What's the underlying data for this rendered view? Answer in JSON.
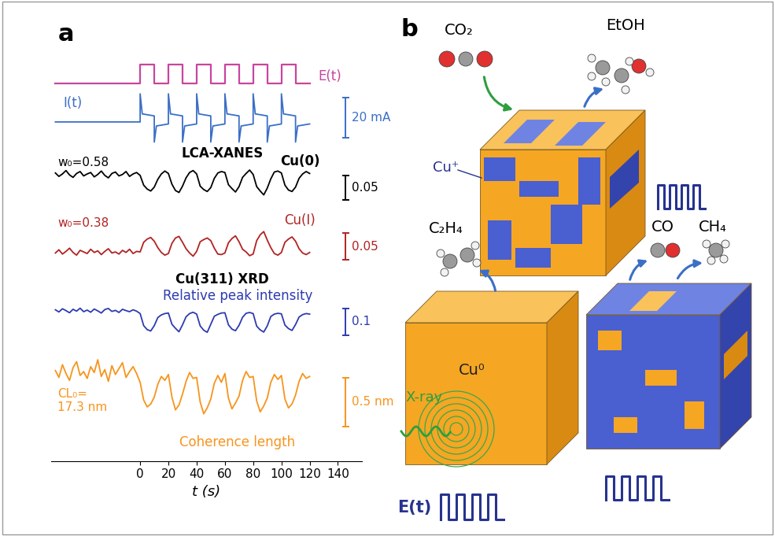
{
  "chart_data": {
    "type": "line",
    "panel_label": "a",
    "xlabel": "t (s)",
    "xlim": [
      -63,
      157
    ],
    "xticks": [
      0,
      20,
      40,
      60,
      80,
      100,
      120,
      140
    ],
    "tick_labels": "x",
    "x": [
      -60,
      -57.5,
      -55,
      -52.5,
      -50,
      -47.5,
      -45,
      -42.5,
      -40,
      -37.5,
      -35,
      -32.5,
      -30,
      -27.5,
      -25,
      -22.5,
      -20,
      -17.5,
      -15,
      -12.5,
      -10,
      -7.5,
      -5,
      -2.5,
      0,
      2.5,
      5,
      7.5,
      10,
      12.5,
      15,
      17.5,
      20,
      22.5,
      25,
      27.5,
      30,
      32.5,
      35,
      37.5,
      40,
      42.5,
      45,
      47.5,
      50,
      52.5,
      55,
      57.5,
      60,
      62.5,
      65,
      67.5,
      70,
      72.5,
      75,
      77.5,
      80,
      82.5,
      85,
      87.5,
      90,
      92.5,
      95,
      97.5,
      100,
      102.5,
      105,
      107.5,
      110,
      112.5,
      115,
      117.5,
      120
    ],
    "groups": [
      {
        "label": "LCA-XANES",
        "series": [
          "Cu(0)",
          "Cu(I)"
        ]
      },
      {
        "label": "Cu(311) XRD",
        "series": [
          "Relative peak intensity",
          "Coherence length"
        ]
      }
    ],
    "series": [
      {
        "name": "E(t)",
        "color": "#c8459e",
        "line_style": "steps",
        "ylim": [
          -0.4,
          1.3
        ],
        "x": [
          -60,
          0,
          10,
          20,
          30,
          40,
          50,
          60,
          70,
          80,
          90,
          100,
          110,
          120
        ],
        "values": [
          0,
          1,
          0,
          1,
          0,
          1,
          0,
          1,
          0,
          1,
          0,
          1,
          0,
          0
        ]
      },
      {
        "name": "I(t)",
        "color": "#3b6fc6",
        "ylim": [
          -14,
          18
        ],
        "scale": 20,
        "scale_label": "20 mA",
        "x": [
          -60,
          0,
          0,
          1.5,
          10,
          10,
          11.5,
          20,
          20,
          21.5,
          30,
          30,
          31.5,
          40,
          40,
          41.5,
          50,
          50,
          51.5,
          60,
          60,
          61.5,
          70,
          70,
          71.5,
          80,
          80,
          81.5,
          90,
          90,
          91.5,
          100,
          100,
          101.5,
          110,
          110,
          111.5,
          120
        ],
        "values": [
          0,
          0,
          14,
          4,
          3,
          -10,
          -2,
          -1,
          14,
          4,
          3,
          -10,
          -2,
          -1,
          14,
          4,
          3,
          -10,
          -2,
          -1,
          14,
          4,
          3,
          -10,
          -2,
          -1,
          14,
          4,
          3,
          -10,
          -2,
          -1,
          14,
          4,
          3,
          -10,
          -2,
          -1
        ]
      },
      {
        "name": "Cu(0)",
        "color": "#000000",
        "ylim": [
          0.5,
          0.61
        ],
        "scale": 0.05,
        "scale_label": "0.05",
        "annotation": "w₀=0.58",
        "values": [
          0.585,
          0.578,
          0.583,
          0.59,
          0.581,
          0.576,
          0.584,
          0.588,
          0.579,
          0.583,
          0.586,
          0.577,
          0.582,
          0.589,
          0.58,
          0.575,
          0.584,
          0.587,
          0.579,
          0.582,
          0.588,
          0.578,
          0.583,
          0.586,
          0.58,
          0.56,
          0.552,
          0.548,
          0.556,
          0.572,
          0.583,
          0.589,
          0.584,
          0.562,
          0.549,
          0.545,
          0.558,
          0.575,
          0.586,
          0.59,
          0.583,
          0.558,
          0.551,
          0.547,
          0.555,
          0.574,
          0.585,
          0.588,
          0.586,
          0.561,
          0.553,
          0.546,
          0.557,
          0.576,
          0.584,
          0.591,
          0.582,
          0.557,
          0.548,
          0.54,
          0.554,
          0.573,
          0.587,
          0.589,
          0.585,
          0.56,
          0.55,
          0.547,
          0.556,
          0.574,
          0.583,
          0.588,
          0.584
        ]
      },
      {
        "name": "Cu(I)",
        "color": "#b22222",
        "ylim": [
          0.34,
          0.44
        ],
        "scale": 0.05,
        "scale_label": "0.05",
        "annotation": "w₀=0.38",
        "values": [
          0.378,
          0.384,
          0.376,
          0.381,
          0.387,
          0.379,
          0.374,
          0.383,
          0.38,
          0.377,
          0.385,
          0.379,
          0.382,
          0.375,
          0.381,
          0.386,
          0.378,
          0.38,
          0.376,
          0.383,
          0.379,
          0.385,
          0.377,
          0.381,
          0.38,
          0.398,
          0.404,
          0.407,
          0.4,
          0.388,
          0.379,
          0.374,
          0.377,
          0.396,
          0.406,
          0.409,
          0.398,
          0.386,
          0.378,
          0.372,
          0.381,
          0.399,
          0.403,
          0.406,
          0.401,
          0.387,
          0.376,
          0.375,
          0.378,
          0.397,
          0.405,
          0.41,
          0.399,
          0.385,
          0.38,
          0.373,
          0.376,
          0.401,
          0.412,
          0.418,
          0.402,
          0.388,
          0.377,
          0.374,
          0.379,
          0.398,
          0.404,
          0.408,
          0.4,
          0.386,
          0.378,
          0.375,
          0.379
        ]
      },
      {
        "name": "Relative peak intensity",
        "color": "#2d3bb0",
        "ylim": [
          0.86,
          1.06
        ],
        "scale": 0.1,
        "scale_label": "0.1",
        "values": [
          1.004,
          0.996,
          1.008,
          1.001,
          0.993,
          1.006,
          0.999,
          1.01,
          0.997,
          1.003,
          0.995,
          1.007,
          1.0,
          0.992,
          1.005,
          1.009,
          0.998,
          1.002,
          0.994,
          1.006,
          1.001,
          0.997,
          1.004,
          0.999,
          0.99,
          0.945,
          0.93,
          0.925,
          0.945,
          0.975,
          0.985,
          0.99,
          0.992,
          0.95,
          0.935,
          0.922,
          0.948,
          0.978,
          0.99,
          0.995,
          0.988,
          0.944,
          0.928,
          0.92,
          0.95,
          0.98,
          0.987,
          0.992,
          0.993,
          0.948,
          0.932,
          0.926,
          0.946,
          0.976,
          0.991,
          0.994,
          0.99,
          0.943,
          0.929,
          0.921,
          0.944,
          0.979,
          0.988,
          0.991,
          0.989,
          0.947,
          0.934,
          0.927,
          0.949,
          0.977,
          0.986,
          0.99,
          0.988
        ]
      },
      {
        "name": "Coherence length",
        "color": "#f7941d",
        "ylim": [
          16.4,
          17.6
        ],
        "scale": 0.5,
        "scale_label": "0.5 nm",
        "annotation": "CL₀=\n17.3 nm",
        "values": [
          17.32,
          17.25,
          17.38,
          17.29,
          17.22,
          17.35,
          17.41,
          17.27,
          17.31,
          17.24,
          17.36,
          17.3,
          17.43,
          17.26,
          17.33,
          17.21,
          17.37,
          17.28,
          17.34,
          17.4,
          17.25,
          17.31,
          17.36,
          17.29,
          17.2,
          17.02,
          16.95,
          16.98,
          17.05,
          17.18,
          17.26,
          17.22,
          17.28,
          17.05,
          16.92,
          16.97,
          17.08,
          17.21,
          17.3,
          17.24,
          17.25,
          17.0,
          16.88,
          16.94,
          17.03,
          17.19,
          17.27,
          17.2,
          17.29,
          17.04,
          16.93,
          16.99,
          17.06,
          17.22,
          17.31,
          17.25,
          17.26,
          17.01,
          16.9,
          16.96,
          17.04,
          17.2,
          17.28,
          17.23,
          17.27,
          17.03,
          16.94,
          16.98,
          17.07,
          17.21,
          17.29,
          17.24,
          17.26
        ]
      }
    ]
  },
  "diagram": {
    "panel_label": "b",
    "reactant": "CO₂",
    "products": [
      "EtOH",
      "C₂H₄",
      "CO",
      "CH₄"
    ],
    "sites": [
      "Cu⁺",
      "Cu⁰"
    ],
    "probe": "X-ray",
    "potential": "E(t)"
  }
}
